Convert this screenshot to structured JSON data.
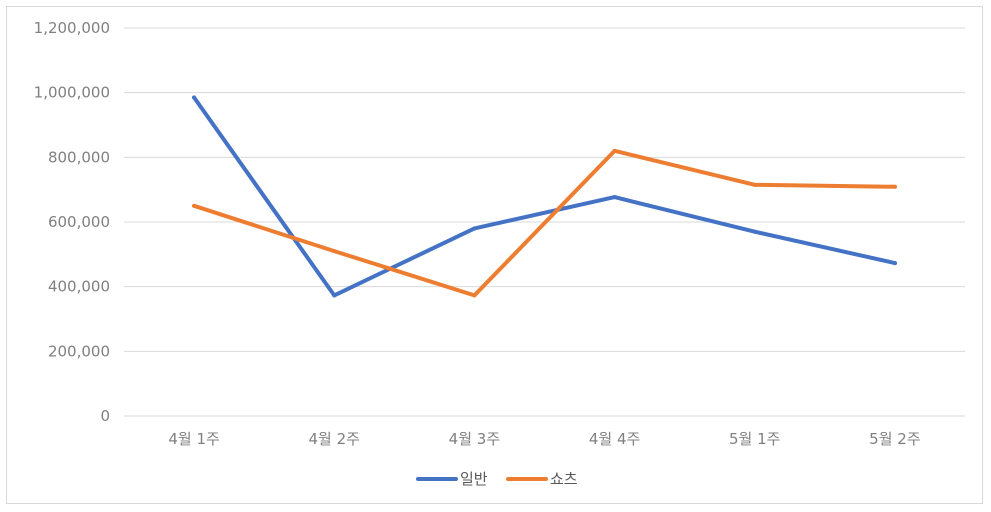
{
  "chart_data": {
    "type": "line",
    "title": "",
    "xlabel": "",
    "ylabel": "",
    "categories": [
      "4월 1주",
      "4월 2주",
      "4월 3주",
      "4월 4주",
      "5월 1주",
      "5월 2주"
    ],
    "series": [
      {
        "name": "일반",
        "color": "#4472C4",
        "values": [
          985000,
          373000,
          580000,
          677000,
          570000,
          473000
        ]
      },
      {
        "name": "쇼츠",
        "color": "#ED7D31",
        "values": [
          650000,
          510000,
          373000,
          820000,
          715000,
          709000
        ]
      }
    ],
    "ylim": [
      0,
      1200000
    ],
    "yticks": [
      0,
      200000,
      400000,
      600000,
      800000,
      1000000,
      1200000
    ],
    "ytick_labels": [
      "0",
      "200,000",
      "400,000",
      "600,000",
      "800,000",
      "1,000,000",
      "1,200,000"
    ],
    "grid": true,
    "legend": "bottom-center"
  }
}
